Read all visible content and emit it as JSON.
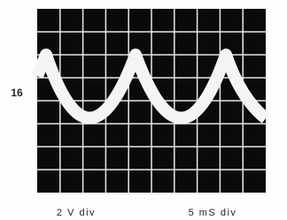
{
  "figure_label": "16",
  "captions": [
    "2 V div",
    "5 mS div"
  ]
}
